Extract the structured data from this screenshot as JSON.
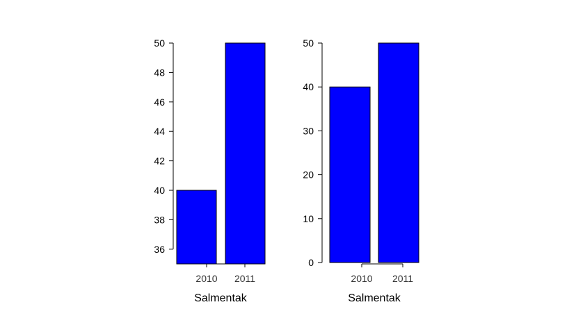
{
  "chart_data": [
    {
      "type": "bar",
      "categories": [
        "2010",
        "2011"
      ],
      "values": [
        40,
        50
      ],
      "xlabel": "Salmentak",
      "ylabel": "",
      "ylim": [
        35,
        50
      ],
      "yticks": [
        36,
        38,
        40,
        42,
        44,
        46,
        48,
        50
      ],
      "bar_color": "#0000ff"
    },
    {
      "type": "bar",
      "categories": [
        "2010",
        "2011"
      ],
      "values": [
        40,
        50
      ],
      "xlabel": "Salmentak",
      "ylabel": "",
      "ylim": [
        0,
        50
      ],
      "yticks": [
        0,
        10,
        20,
        30,
        40,
        50
      ],
      "bar_color": "#0000ff"
    }
  ]
}
